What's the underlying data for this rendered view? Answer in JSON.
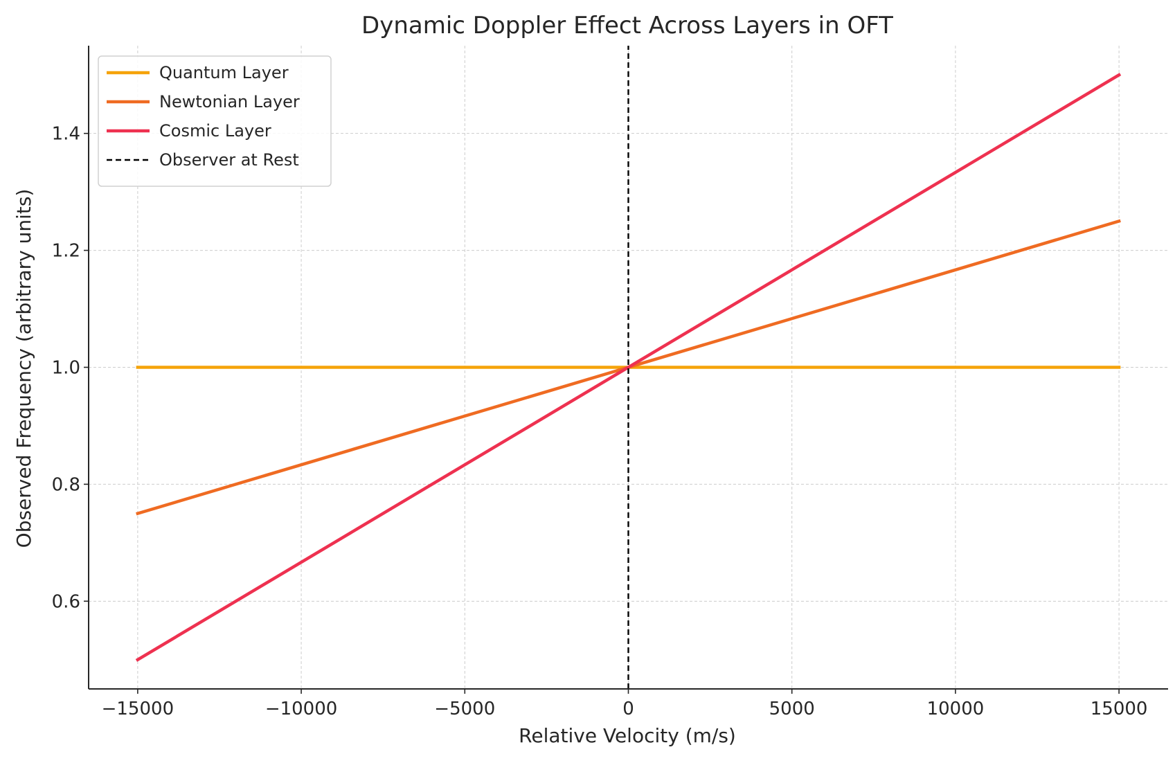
{
  "chart_data": {
    "type": "line",
    "title": "Dynamic Doppler Effect Across Layers in OFT",
    "xlabel": "Relative Velocity (m/s)",
    "ylabel": "Observed Frequency (arbitrary units)",
    "xlim": [
      -16500,
      16500
    ],
    "ylim": [
      0.45,
      1.55
    ],
    "xticks": [
      -15000,
      -10000,
      -5000,
      0,
      5000,
      10000,
      15000
    ],
    "xtick_labels": [
      "−15000",
      "−10000",
      "−5000",
      "0",
      "5000",
      "10000",
      "15000"
    ],
    "yticks": [
      0.6,
      0.8,
      1.0,
      1.2,
      1.4
    ],
    "ytick_labels": [
      "0.6",
      "0.8",
      "1.0",
      "1.2",
      "1.4"
    ],
    "grid": true,
    "legend_position": "top-left",
    "series": [
      {
        "name": "Quantum Layer",
        "color": "#f5a30a",
        "style": "solid",
        "x": [
          -15000,
          15000
        ],
        "y": [
          1.0,
          1.0
        ]
      },
      {
        "name": "Newtonian Layer",
        "color": "#ef6b22",
        "style": "solid",
        "x": [
          -15000,
          15000
        ],
        "y": [
          0.75,
          1.25
        ]
      },
      {
        "name": "Cosmic Layer",
        "color": "#ee3150",
        "style": "solid",
        "x": [
          -15000,
          15000
        ],
        "y": [
          0.5,
          1.5
        ]
      },
      {
        "name": "Observer at Rest",
        "color": "#000000",
        "style": "dashed",
        "x": [
          0,
          0
        ],
        "y": [
          0.45,
          1.55
        ]
      }
    ]
  }
}
